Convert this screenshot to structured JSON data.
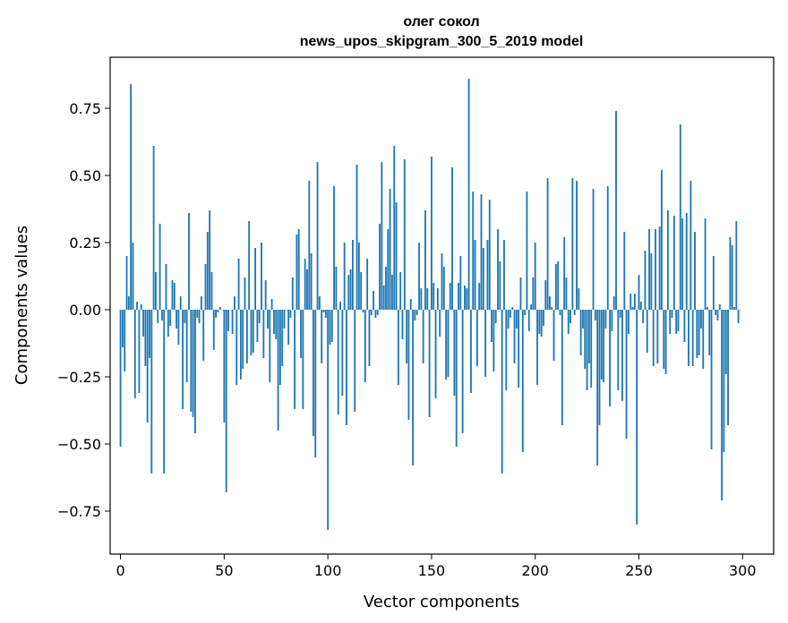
{
  "chart_data": {
    "type": "bar",
    "title_line1": "олег сокол",
    "title_line2": "news_upos_skipgram_300_5_2019 model",
    "xlabel": "Vector components",
    "ylabel": "Components values",
    "xlim": [
      -5,
      315
    ],
    "ylim": [
      -0.91,
      0.94
    ],
    "xticks": [
      0,
      50,
      100,
      150,
      200,
      250,
      300
    ],
    "xtick_labels": [
      "0",
      "50",
      "100",
      "150",
      "200",
      "250",
      "300"
    ],
    "yticks": [
      -0.75,
      -0.5,
      -0.25,
      0.0,
      0.25,
      0.5,
      0.75
    ],
    "ytick_labels": [
      "−0.75",
      "−0.50",
      "−0.25",
      "0.00",
      "0.25",
      "0.50",
      "0.75"
    ],
    "grid": false,
    "legend": "none",
    "bar_color": "#1f77b4",
    "values": [
      -0.51,
      -0.14,
      -0.23,
      0.2,
      0.05,
      0.84,
      0.25,
      -0.33,
      0.03,
      -0.31,
      0.02,
      -0.1,
      -0.21,
      -0.42,
      -0.18,
      -0.61,
      0.61,
      0.14,
      -0.05,
      0.32,
      -0.04,
      -0.61,
      0.17,
      -0.1,
      -0.06,
      0.11,
      0.1,
      -0.07,
      -0.13,
      0.05,
      -0.37,
      -0.05,
      -0.27,
      0.36,
      -0.38,
      -0.4,
      -0.46,
      -0.03,
      -0.05,
      0.05,
      -0.19,
      0.17,
      0.29,
      0.37,
      0.14,
      -0.15,
      -0.03,
      -0.01,
      0.01,
      0.0,
      -0.42,
      -0.68,
      -0.08,
      0.0,
      -0.09,
      0.05,
      -0.28,
      0.19,
      -0.26,
      -0.22,
      0.12,
      -0.2,
      0.33,
      -0.17,
      -0.16,
      0.23,
      -0.12,
      -0.05,
      0.25,
      -0.18,
      0.11,
      -0.07,
      -0.27,
      0.04,
      -0.09,
      -0.11,
      -0.45,
      -0.28,
      -0.21,
      -0.07,
      0.0,
      -0.13,
      -0.03,
      0.12,
      -0.37,
      0.28,
      0.3,
      -0.18,
      -0.37,
      0.19,
      0.15,
      0.48,
      0.21,
      -0.47,
      -0.55,
      0.55,
      0.05,
      -0.2,
      -0.01,
      -0.03,
      -0.82,
      -0.13,
      -0.12,
      0.46,
      0.16,
      -0.39,
      0.03,
      -0.32,
      0.25,
      -0.43,
      0.13,
      0.15,
      0.26,
      -0.38,
      0.54,
      0.25,
      0.14,
      -0.01,
      -0.27,
      0.19,
      -0.21,
      -0.02,
      0.07,
      -0.03,
      -0.02,
      0.32,
      0.55,
      0.09,
      0.16,
      0.3,
      0.45,
      0.13,
      0.61,
      0.4,
      -0.28,
      0.14,
      -0.11,
      0.56,
      -0.2,
      -0.41,
      0.04,
      -0.58,
      -0.04,
      -0.02,
      0.25,
      0.08,
      -0.2,
      0.37,
      0.08,
      -0.4,
      0.57,
      0.1,
      -0.33,
      0.08,
      -0.1,
      0.21,
      0.16,
      -0.26,
      -0.25,
      0.1,
      0.53,
      -0.32,
      -0.51,
      0.1,
      0.2,
      -0.46,
      0.09,
      0.08,
      0.86,
      -0.31,
      0.44,
      0.26,
      -0.21,
      0.1,
      0.43,
      0.23,
      -0.25,
      0.26,
      0.41,
      -0.12,
      -0.23,
      -0.05,
      0.3,
      0.18,
      -0.61,
      0.26,
      -0.3,
      -0.07,
      -0.03,
      0.01,
      -0.2,
      -0.07,
      -0.29,
      0.12,
      -0.53,
      -0.02,
      0.44,
      -0.08,
      0.02,
      0.12,
      0.25,
      -0.28,
      -0.09,
      -0.1,
      -0.06,
      0.11,
      0.49,
      0.05,
      0.01,
      -0.19,
      0.17,
      0.18,
      -0.02,
      -0.43,
      0.27,
      0.12,
      -0.09,
      -0.05,
      0.49,
      -0.02,
      0.48,
      0.08,
      -0.17,
      -0.07,
      -0.22,
      -0.3,
      -0.2,
      -0.29,
      0.45,
      -0.04,
      -0.58,
      -0.43,
      -0.26,
      -0.27,
      -0.07,
      0.46,
      -0.36,
      -0.08,
      0.05,
      0.74,
      -0.3,
      -0.03,
      -0.34,
      0.29,
      -0.48,
      -0.09,
      0.06,
      0.01,
      0.06,
      -0.8,
      0.13,
      0.03,
      -0.05,
      0.22,
      -0.16,
      0.3,
      0.21,
      -0.21,
      0.3,
      -0.2,
      0.31,
      0.52,
      -0.22,
      -0.24,
      0.37,
      -0.09,
      -0.03,
      0.35,
      -0.09,
      -0.08,
      0.69,
      0.34,
      -0.12,
      0.36,
      -0.21,
      0.48,
      -0.21,
      0.29,
      -0.18,
      -0.17,
      -0.07,
      -0.22,
      0.34,
      0.01,
      -0.17,
      -0.52,
      0.2,
      -0.02,
      -0.04,
      0.02,
      -0.71,
      -0.53,
      -0.24,
      -0.43,
      0.27,
      0.24,
      0.01,
      0.33,
      -0.05,
      0.0
    ]
  }
}
